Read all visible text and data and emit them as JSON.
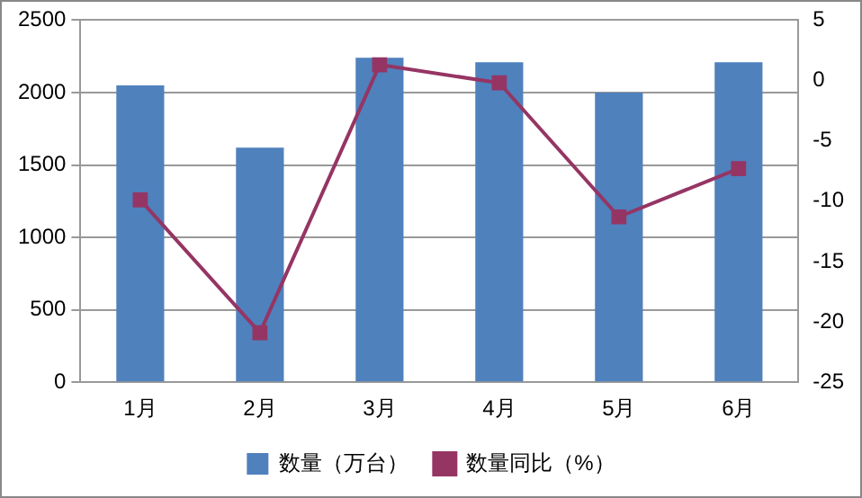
{
  "chart_data": {
    "type": "bar",
    "categories": [
      "1月",
      "2月",
      "3月",
      "4月",
      "5月",
      "6月"
    ],
    "series": [
      {
        "name": "数量（万台）",
        "color": "#4f81bd",
        "values": [
          2050,
          1620,
          2240,
          2210,
          2000,
          2210
        ]
      },
      {
        "name": "数量同比（%）",
        "type": "line",
        "axis": "y2",
        "color": "#953564",
        "marker": "square",
        "values": [
          -9.9,
          -20.9,
          1.3,
          -0.2,
          -11.3,
          -7.3
        ]
      }
    ],
    "ylim": [
      0,
      2500
    ],
    "yticks": [
      0,
      500,
      1000,
      1500,
      2000,
      2500
    ],
    "y2lim": [
      -25,
      5
    ],
    "y2ticks": [
      -25,
      -20,
      -15,
      -10,
      -5,
      0,
      5
    ],
    "grid": "y",
    "legend": "bottom"
  }
}
